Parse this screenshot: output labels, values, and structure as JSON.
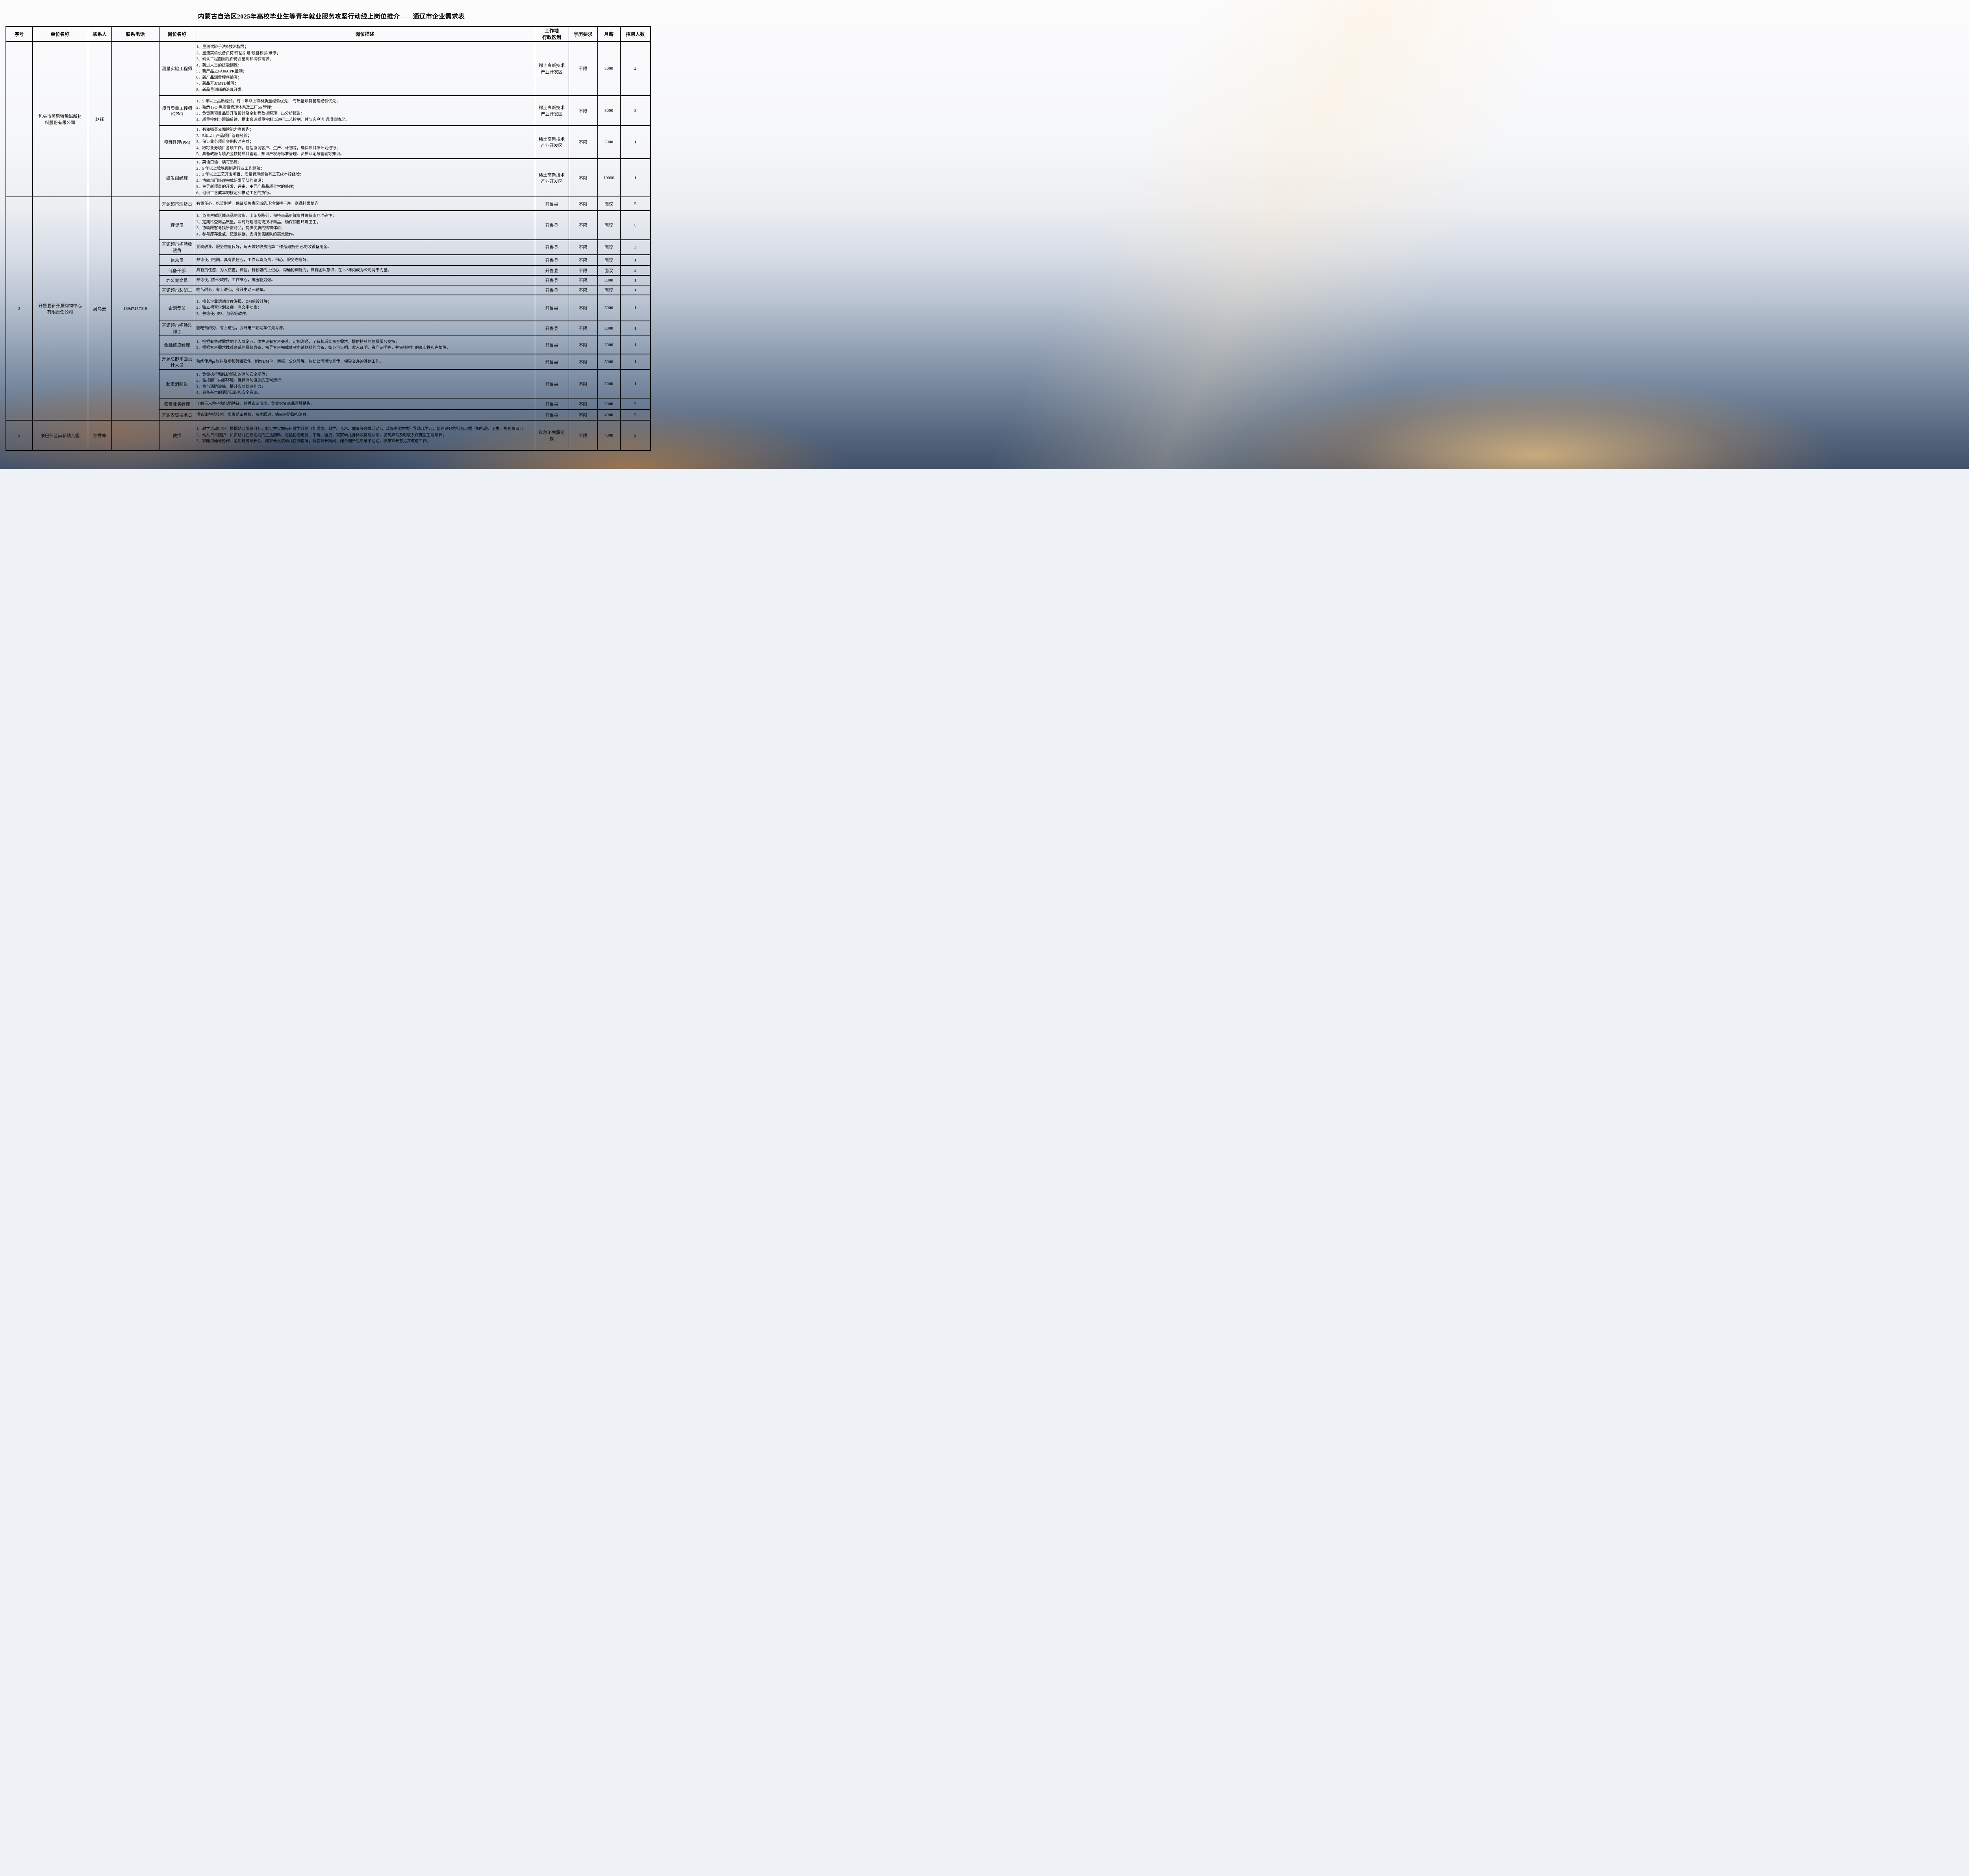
{
  "title": "内蒙古自治区2025年高校毕业生等青年就业服务攻坚行动线上岗位推介——通辽市企业需求表",
  "columns": {
    "seq": "序号",
    "company": "单位名称",
    "contact": "联系人",
    "phone": "联系电话",
    "position": "岗位名称",
    "description": "岗位描述",
    "location": "工作地\n行政区划",
    "education": "学历要求",
    "salary": "月薪",
    "count": "招聘人数"
  },
  "companies": [
    {
      "seq": "",
      "name": "包头市英思特稀磁新材\n料股份有限公司",
      "contact": "赵钰",
      "phone": "",
      "positions": [
        {
          "title": "测量实验工程师",
          "desc": [
            "1、量测试验手法&技术指导；",
            "2、量测实验设备负荷/评估引进/设备校验/维修；",
            "3、确认工程图面是否符合量测和试验需求；",
            "4、新进人员的技能训练；",
            "5、新产品之FAI&CPK量测；",
            "6、新产品测量程序编写；",
            "7、新品开发MTD编写；",
            "8、新品量测辅助治具开发。"
          ],
          "location": "稀土高新技术\n产业开发区",
          "education": "不限",
          "salary": "5000",
          "count": "2"
        },
        {
          "title": "项目质量工程师\n(QPM)",
          "desc": [
            "1、5 年以上品质经验，有 3 年以上磁材质量经验优先； 有质量项目管理经验优先；",
            "2、熟悉 ISO 等质量管理体系及工厂6S 管理；",
            "3、负责新项目品质开发设计及全制程数据整理，出分析报告；",
            "4、质量控制与跟踪反馈，提出合理质量控制点进行工艺控制，并与客户沟 通项目情况。"
          ],
          "location": "稀土高新技术\n产业开发区",
          "education": "不限",
          "salary": "5000",
          "count": "3"
        },
        {
          "title": "项目经理(PM)",
          "desc": [
            "1、有较强英文阅读能力者优先；",
            "2、5年以上产品项目管理经验；",
            "3、保证业务项目交期按时完成；",
            "4、跟踪业务项目各项工作，包括协调客户、生产、计划等，确保项目按计划进行；",
            "5、具备政府专项资金扶持项目管理、知识产权与标准管理、资质认定与管理等知识。"
          ],
          "location": "稀土高新技术\n产业开发区",
          "education": "不限",
          "salary": "5000",
          "count": "1"
        },
        {
          "title": "研发副经理",
          "desc": [
            "1、英语口语、读写熟练；",
            "2、5 年以上钕铁硼制造行业工作经验；",
            "3、3 年以上工艺开发项目、质量管理经验有工艺成本控经验；",
            "4、协助部门经理完成研发团队的建设；",
            "5、主导新项目的开发、评审，主导产品品质异常的处理；",
            "6、组织工艺成本的核定和推动工艺的执行。"
          ],
          "location": "稀土高新技术\n产业开发区",
          "education": "不限",
          "salary": "10000",
          "count": "1"
        }
      ]
    },
    {
      "seq": "2",
      "name": "开鲁县新开源购物中心\n有限责任公司",
      "contact": "吴乌云",
      "phone": "18947457019",
      "positions": [
        {
          "title": "开源超市理货员",
          "desc": [
            "有责任心，吃苦耐劳，保证所负责区域的环境保持干净，商品排面整齐"
          ],
          "location": "开鲁县",
          "education": "不限",
          "salary": "面议",
          "count": "5"
        },
        {
          "title": "理货员",
          "desc": [
            "1、负责生鲜区域商品的收货、上架及陈列，保持商品新鲜度并确保库存准确性；",
            "2、定期检查商品质量，及时处理过期或损坏商品，确保销售环境卫生；",
            "3、协助顾客寻找所需商品，提供优质的购物体验；",
            "4、参与库存盘点，记录数据，支持销售团队的高效运作。"
          ],
          "location": "开鲁县",
          "education": "不限",
          "salary": "面议",
          "count": "5"
        },
        {
          "title": "开源超市招聘收\n银员",
          "desc": [
            "爱岗敬业、服务态度良好，每天做好收费结算工作;管理好自己的收银备用金。"
          ],
          "location": "开鲁县",
          "education": "不限",
          "salary": "面议",
          "count": "3"
        },
        {
          "title": "信息员",
          "desc": [
            "熟练使用电脑，具有责任心，工作认真负责，细心，服务态度好。"
          ],
          "location": "开鲁县",
          "education": "不限",
          "salary": "面议",
          "count": "1"
        },
        {
          "title": "储备干部",
          "desc": [
            "具有责任感，为人正直，诚信，有较强的上进心，沟通协调能力，具有团队意识，在1~2年内成为公司骨干力量。"
          ],
          "location": "开鲁县",
          "education": "不限",
          "salary": "面议",
          "count": "3"
        },
        {
          "title": "办公室文员",
          "desc": [
            "熟练使用办公软件，工作细心，抗压能力强。"
          ],
          "location": "开鲁县",
          "education": "不限",
          "salary": "3000",
          "count": "1"
        },
        {
          "title": "开源超市装卸工",
          "desc": [
            "吃苦耐劳，有上进心，会开电动三轮车。"
          ],
          "location": "开鲁县",
          "education": "不限",
          "salary": "面议",
          "count": "1"
        },
        {
          "title": "企划专员",
          "desc": [
            "1、擅长企业活动宣传海报、DM单设计等；",
            "2、独立撰写企划文案，有文字功底；",
            "3、熟练使用PS、剪影等软件。"
          ],
          "location": "开鲁县",
          "education": "不限",
          "salary": "3000",
          "count": "1"
        },
        {
          "title": "开源超市招聘装\n卸工",
          "desc": [
            "能吃苦耐劳，有上进心，会开电三轮动车优先考虑。"
          ],
          "location": "开鲁县",
          "education": "不限",
          "salary": "3000",
          "count": "1"
        },
        {
          "title": "金融信贷经理",
          "desc": [
            "1、挖掘有贷款需求的个人或企业。维护现有客户关系，定期沟通，了解其后续资金需求，提供持续的信贷服务支持；",
            "2、根据客户需求推荐合适的贷款方案，指导客户完成贷款申请材料的准备，如身份证明、收入证明、资产证明等，并审核材料的真实性和完整性。"
          ],
          "location": "开鲁县",
          "education": "不限",
          "salary": "3000",
          "count": "1"
        },
        {
          "title": "开源总部平面设\n计人员",
          "desc": [
            "熟练使用ps软件及视频剪辑软件、制作DM单、海报、公众号等，协助公司活动宣传，领导交办的其他工作。"
          ],
          "location": "开鲁县",
          "education": "不限",
          "salary": "3000",
          "count": "1"
        },
        {
          "title": "超市消防员",
          "desc": [
            "1、负责执行和维护超市的消防安全规范；",
            "2、监控超市内部环境，确保消防设施的正常运行；",
            "3、参与消防演练，提升应急处理能力；",
            "4、具备基本的消防知识和安全意识。"
          ],
          "location": "开鲁县",
          "education": "不限",
          "salary": "3000",
          "count": "1"
        },
        {
          "title": "农资业务经理",
          "desc": [
            "了解玉米种子和化肥特征，熟悉农业市场，负责农资商品区域销售。"
          ],
          "location": "开鲁县",
          "education": "不限",
          "salary": "3000",
          "count": "5"
        },
        {
          "title": "开源农资技术员",
          "desc": [
            "懂农业种植技术，负责范田种植，技术跟进，病虫害防御和治理。"
          ],
          "location": "开鲁县",
          "education": "不限",
          "salary": "4000",
          "count": "5"
        }
      ]
    },
    {
      "seq": "3",
      "name": "康巴什区尚都幼儿园",
      "contact": "孙秀峰",
      "phone": "",
      "positions": [
        {
          "title": "教师",
          "desc": [
            "1、教学活动组织：根据幼儿阶段目标，制定并实施每日教学计划（如语言、科学、艺术、健康等领域活动），以游戏化方式引导幼儿学习，培养良好的行为习惯（如礼貌、卫生、规则意识）；",
            "2、幼儿日常照护：负责幼儿在园期间的生活照料，包括协助进餐、午睡、盥洗，观察幼儿身体及情绪状态，发现异常及时联系保健医生或家长；",
            "3、家园沟通与协作：定期通过家长会、向家长反馈幼儿在园情况，解答家长疑问；配合园所组织亲子活动，收集家长意见并改进工作。"
          ],
          "location": "科尔沁右翼前\n旗",
          "education": "不限",
          "salary": "4000",
          "count": "5"
        }
      ]
    }
  ]
}
